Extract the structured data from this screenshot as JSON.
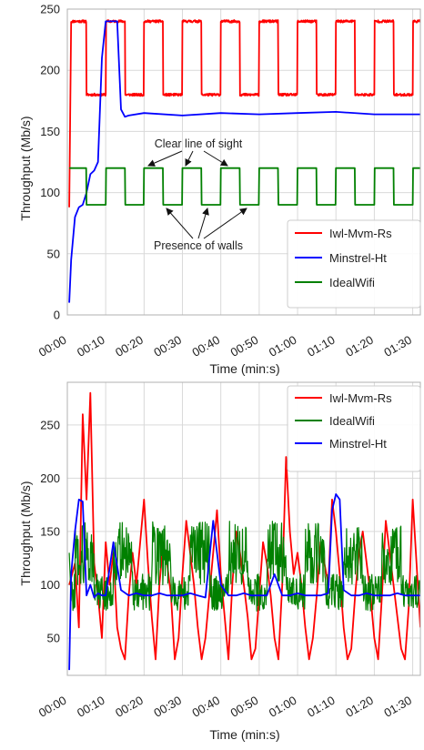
{
  "colors": {
    "iwl_mvm_rs": "#ff0000",
    "minstrel_ht": "#0000ff",
    "idealwifi": "#008000",
    "grid": "#d9d9d9",
    "axis": "#b0b0b0"
  },
  "chart_data": [
    {
      "type": "line",
      "xlabel": "Time (min:s)",
      "ylabel": "Throughput (Mb/s)",
      "xlim": [
        0,
        92
      ],
      "ylim": [
        0,
        250
      ],
      "x_tick_labels": [
        "00:00",
        "00:10",
        "00:20",
        "00:30",
        "00:40",
        "00:50",
        "01:00",
        "01:10",
        "01:20",
        "01:30"
      ],
      "x_tick_values": [
        0,
        10,
        20,
        30,
        40,
        50,
        60,
        70,
        80,
        90
      ],
      "y_tick_labels": [
        "0",
        "50",
        "100",
        "150",
        "200",
        "250"
      ],
      "y_tick_values": [
        0,
        50,
        100,
        150,
        200,
        250
      ],
      "grid": true,
      "legend_position": "bottom-right",
      "legend": [
        "Iwl-Mvm-Rs",
        "Minstrel-Ht",
        "IdealWifi"
      ],
      "annotations": [
        {
          "text": "Clear line of sight",
          "targets_x": [
            19.5,
            29.5,
            39.5
          ],
          "target_y": 120
        },
        {
          "text": "Presence of walls",
          "targets_x": [
            24.5,
            34.5,
            44.5
          ],
          "target_y": 90
        }
      ],
      "series": [
        {
          "name": "Iwl-Mvm-Rs",
          "color": "#ff0000",
          "pattern": "square-wave",
          "first_x": 0.5,
          "start_value": 88,
          "high": 240,
          "low": 180,
          "period_s": 10,
          "high_from_s": 0,
          "high_to_s": 5,
          "noise": 1
        },
        {
          "name": "Minstrel-Ht",
          "color": "#0000ff",
          "x": [
            0.5,
            1,
            2,
            3,
            4,
            5,
            6,
            7,
            8,
            9,
            10,
            11,
            12,
            13,
            14,
            15,
            16,
            20,
            30,
            40,
            50,
            60,
            70,
            80,
            92
          ],
          "y": [
            10,
            45,
            80,
            88,
            90,
            100,
            115,
            118,
            125,
            210,
            240,
            240,
            240,
            240,
            168,
            162,
            163,
            165,
            163,
            165,
            164,
            165,
            166,
            164,
            164
          ]
        },
        {
          "name": "IdealWifi",
          "color": "#008000",
          "pattern": "square-wave",
          "first_x": 0.5,
          "start_value": 120,
          "high": 120,
          "low": 90,
          "period_s": 10,
          "high_from_s": 0,
          "high_to_s": 5,
          "noise": 0
        }
      ]
    },
    {
      "type": "line",
      "xlabel": "Time (min:s)",
      "ylabel": "Throughput (Mb/s)",
      "xlim": [
        0,
        92
      ],
      "ylim": [
        15,
        290
      ],
      "x_tick_labels": [
        "00:00",
        "00:10",
        "00:20",
        "00:30",
        "00:40",
        "00:50",
        "01:00",
        "01:10",
        "01:20",
        "01:30"
      ],
      "x_tick_values": [
        0,
        10,
        20,
        30,
        40,
        50,
        60,
        70,
        80,
        90
      ],
      "y_tick_labels": [
        "50",
        "100",
        "150",
        "200",
        "250"
      ],
      "y_tick_values": [
        50,
        100,
        150,
        200,
        250
      ],
      "grid": true,
      "legend_position": "top-right",
      "legend": [
        "Iwl-Mvm-Rs",
        "IdealWifi",
        "Minstrel-Ht"
      ],
      "series": [
        {
          "name": "Iwl-Mvm-Rs",
          "color": "#ff0000",
          "x": [
            0.5,
            2,
            3,
            4,
            5,
            6,
            7,
            8,
            9,
            10,
            11,
            12,
            13,
            14,
            15,
            16,
            17,
            18,
            19,
            20,
            21,
            22,
            23,
            24,
            25,
            26,
            27,
            28,
            29,
            30,
            31,
            32,
            33,
            34,
            35,
            36,
            37,
            38,
            39,
            40,
            41,
            42,
            43,
            44,
            45,
            46,
            47,
            48,
            49,
            50,
            51,
            52,
            53,
            54,
            55,
            56,
            57,
            58,
            59,
            60,
            61,
            62,
            63,
            64,
            65,
            66,
            67,
            68,
            69,
            70,
            71,
            72,
            73,
            74,
            75,
            76,
            77,
            78,
            79,
            80,
            81,
            82,
            83,
            84,
            85,
            86,
            87,
            88,
            89,
            90,
            91,
            92
          ],
          "y": [
            100,
            120,
            60,
            260,
            180,
            280,
            120,
            90,
            50,
            140,
            100,
            130,
            60,
            40,
            30,
            90,
            130,
            100,
            140,
            180,
            120,
            70,
            30,
            100,
            140,
            120,
            90,
            30,
            50,
            110,
            160,
            130,
            100,
            60,
            30,
            50,
            90,
            130,
            170,
            110,
            70,
            30,
            100,
            150,
            130,
            100,
            70,
            30,
            40,
            90,
            140,
            120,
            90,
            50,
            30,
            100,
            220,
            150,
            110,
            130,
            100,
            60,
            30,
            50,
            90,
            140,
            120,
            100,
            180,
            150,
            110,
            60,
            30,
            40,
            90,
            130,
            150,
            120,
            90,
            50,
            30,
            90,
            160,
            130,
            100,
            70,
            40,
            30,
            80,
            180,
            120,
            60
          ]
        },
        {
          "name": "IdealWifi",
          "color": "#008000",
          "pattern": "noisy-oscillation",
          "first_x": 0.5,
          "start_value": 130,
          "high_band": [
            100,
            160
          ],
          "low_band": [
            75,
            110
          ],
          "period_s": 10
        },
        {
          "name": "Minstrel-Ht",
          "color": "#0000ff",
          "x": [
            0.5,
            1,
            2,
            3,
            4,
            5,
            6,
            7,
            8,
            9,
            10,
            12,
            14,
            16,
            18,
            20,
            22,
            24,
            26,
            28,
            30,
            32,
            34,
            36,
            38,
            40,
            42,
            44,
            46,
            48,
            50,
            52,
            54,
            56,
            58,
            60,
            62,
            64,
            66,
            68,
            69,
            70,
            71,
            72,
            74,
            76,
            78,
            80,
            82,
            84,
            86,
            88,
            90,
            92
          ],
          "y": [
            20,
            110,
            150,
            180,
            178,
            90,
            100,
            88,
            92,
            90,
            90,
            140,
            95,
            90,
            92,
            90,
            90,
            92,
            90,
            90,
            90,
            92,
            90,
            88,
            160,
            100,
            90,
            90,
            92,
            90,
            90,
            90,
            110,
            90,
            90,
            92,
            90,
            90,
            90,
            92,
            170,
            185,
            180,
            95,
            90,
            90,
            92,
            90,
            90,
            90,
            92,
            90,
            90,
            90
          ]
        }
      ]
    }
  ]
}
